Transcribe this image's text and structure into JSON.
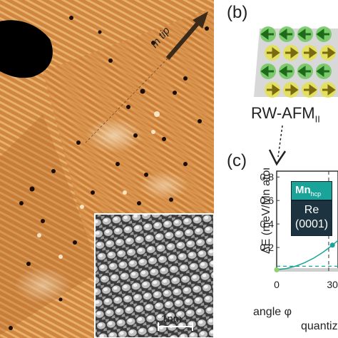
{
  "panel_b": {
    "label": "(b)",
    "caption": "RW-AFM",
    "caption_sub": "II"
  },
  "panel_a": {
    "tip_label": "m tip",
    "scalebar": "1nm"
  },
  "panel_c": {
    "label": "(c)",
    "legend_top": "Mn",
    "legend_top_sub": "hcp",
    "legend_bottom_line1": "Re",
    "legend_bottom_line2": "(0001)",
    "ylabel": "ΔE (meV/Mn atom)",
    "xlabel": "angle φ",
    "xlabel_cont": "quantiz",
    "yticks": [
      "0.8",
      "0.6",
      "0.4",
      "0.2"
    ],
    "xticks": [
      "0",
      "30"
    ]
  },
  "chart_data": {
    "type": "line",
    "xlabel": "angle φ",
    "ylabel": "ΔE (meV/Mn atom)",
    "xlim": [
      0,
      33
    ],
    "ylim": [
      0,
      0.85
    ],
    "series": [
      {
        "x": [
          0,
          5,
          10,
          15,
          20,
          25,
          30,
          33
        ],
        "y": [
          0.01,
          0.02,
          0.04,
          0.07,
          0.11,
          0.16,
          0.22,
          0.26
        ],
        "color": "#1aa398"
      }
    ],
    "reference_line_y": 0.04,
    "vline_x": 28
  },
  "colors": {
    "teal": "#1aa398",
    "dark": "#1d3340",
    "stm_base": "#d28b3f"
  }
}
